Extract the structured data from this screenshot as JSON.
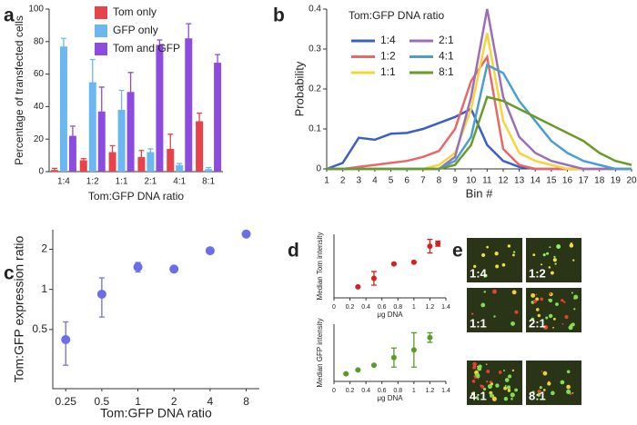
{
  "chart_data": [
    {
      "type": "bar",
      "panel": "a",
      "x_label": "Tom:GFP DNA ratio",
      "y_label": "Percentage of transfected cells",
      "categories": [
        "1:4",
        "1:2",
        "1:1",
        "2:1",
        "4:1",
        "8:1"
      ],
      "series": [
        {
          "name": "Tom only",
          "color": "#e8434b",
          "values": [
            1,
            7,
            12,
            9,
            14,
            31
          ],
          "errors": [
            1,
            1,
            4,
            4,
            9,
            5
          ]
        },
        {
          "name": "GFP only",
          "color": "#6ab7f2",
          "values": [
            77,
            55,
            38,
            12,
            4,
            1.5
          ],
          "errors": [
            5,
            14,
            12,
            2,
            1,
            1
          ]
        },
        {
          "name": "Tom and GFP",
          "color": "#8e4be0",
          "values": [
            22,
            37,
            49,
            78,
            82,
            67
          ],
          "errors": [
            6,
            15,
            12,
            3,
            9,
            5
          ]
        }
      ],
      "ylim": [
        0,
        100
      ],
      "yticks": [
        0,
        20,
        40,
        60,
        80,
        100
      ]
    },
    {
      "type": "line",
      "panel": "b",
      "x_label": "Bin #",
      "y_label": "Probability",
      "legend_title": "Tom:GFP DNA ratio",
      "x": [
        1,
        2,
        3,
        4,
        5,
        6,
        7,
        8,
        9,
        10,
        11,
        12,
        13,
        14,
        15,
        16,
        17,
        18,
        19,
        20
      ],
      "xlim": [
        1,
        20
      ],
      "xticks": [
        1,
        2,
        3,
        4,
        5,
        6,
        7,
        8,
        9,
        10,
        11,
        12,
        13,
        14,
        15,
        16,
        17,
        18,
        19,
        20
      ],
      "ylim": [
        0,
        0.4
      ],
      "yticks": [
        0,
        0.1,
        0.2,
        0.3,
        0.4
      ],
      "series": [
        {
          "name": "1:4",
          "color": "#3b5fc8",
          "values": [
            0,
            0.015,
            0.078,
            0.073,
            0.088,
            0.09,
            0.1,
            0.115,
            0.13,
            0.15,
            0.06,
            0.02,
            0.005,
            0,
            0,
            0,
            0,
            0,
            0,
            0
          ]
        },
        {
          "name": "1:2",
          "color": "#e86868",
          "values": [
            0,
            0,
            0.005,
            0.01,
            0.015,
            0.02,
            0.03,
            0.045,
            0.1,
            0.22,
            0.28,
            0.05,
            0.01,
            0,
            0,
            0,
            0,
            0,
            0,
            0
          ]
        },
        {
          "name": "1:1",
          "color": "#f5d43c",
          "values": [
            0,
            0,
            0,
            0,
            0,
            0,
            0,
            0.01,
            0.04,
            0.15,
            0.34,
            0.12,
            0.04,
            0.02,
            0.01,
            0,
            0,
            0,
            0,
            0
          ]
        },
        {
          "name": "2:1",
          "color": "#9b6fb8",
          "values": [
            0,
            0,
            0,
            0,
            0,
            0,
            0,
            0,
            0.03,
            0.18,
            0.4,
            0.18,
            0.08,
            0.04,
            0.02,
            0.01,
            0,
            0,
            0,
            0
          ]
        },
        {
          "name": "4:1",
          "color": "#4a9fd0",
          "values": [
            0,
            0,
            0,
            0,
            0,
            0,
            0,
            0,
            0.02,
            0.08,
            0.26,
            0.24,
            0.17,
            0.12,
            0.07,
            0.04,
            0.02,
            0.01,
            0,
            0
          ]
        },
        {
          "name": "8:1",
          "color": "#6a9a2a",
          "values": [
            0,
            0,
            0,
            0,
            0,
            0,
            0,
            0,
            0.01,
            0.06,
            0.18,
            0.17,
            0.15,
            0.13,
            0.11,
            0.09,
            0.07,
            0.04,
            0.02,
            0.01
          ]
        }
      ]
    },
    {
      "type": "scatter",
      "panel": "c",
      "x_label": "Tom:GFP DNA ratio",
      "y_label": "Tom:GFP expression ratio",
      "xscale": "log",
      "yscale": "log",
      "xlim": [
        0.195,
        10.3
      ],
      "ylim": [
        0.18,
        2.8
      ],
      "xticks": [
        0.25,
        0.5,
        1,
        2,
        4,
        8
      ],
      "yticks": [
        0.5,
        1,
        2
      ],
      "x": [
        0.25,
        0.5,
        1,
        2,
        4,
        8
      ],
      "series": [
        {
          "color": "#6b6ee8",
          "values": [
            0.42,
            0.92,
            1.47,
            1.42,
            1.95,
            2.6
          ],
          "errors": [
            0.15,
            0.3,
            0.12,
            0,
            0,
            0
          ]
        }
      ]
    },
    {
      "type": "scatter",
      "panel": "d",
      "x_label": "μg DNA",
      "y_label": "Median Tom intensity",
      "xlim": [
        0,
        1.4
      ],
      "xticks": [
        0,
        0.2,
        0.4,
        0.6,
        0.8,
        1,
        1.2,
        1.4
      ],
      "ylim": [
        0.15,
        0.9
      ],
      "x": [
        0.3,
        0.5,
        0.75,
        1,
        1.2,
        1.3
      ],
      "series": [
        {
          "color": "#d42020",
          "values": [
            0.28,
            0.38,
            0.55,
            0.57,
            0.76,
            0.79
          ],
          "errors": [
            0,
            0.08,
            0,
            0,
            0.08,
            0.03
          ]
        }
      ]
    },
    {
      "type": "scatter",
      "x_label": "μg DNA",
      "y_label": "Median GFP intensity",
      "xlim": [
        0,
        1.4
      ],
      "xticks": [
        0,
        0.2,
        0.4,
        0.6,
        0.8,
        1,
        1.2,
        1.4
      ],
      "ylim": [
        0.2,
        0.8
      ],
      "x": [
        0.15,
        0.3,
        0.5,
        0.75,
        1,
        1.2
      ],
      "series": [
        {
          "color": "#5a9a2a",
          "values": [
            0.28,
            0.32,
            0.37,
            0.45,
            0.53,
            0.66
          ],
          "errors": [
            0,
            0,
            0,
            0.1,
            0.18,
            0.05
          ]
        }
      ]
    }
  ],
  "images": {
    "panel": "e",
    "labels": [
      "1:4",
      "1:2",
      "1:1",
      "2:1",
      "4:1",
      "8:1"
    ]
  }
}
